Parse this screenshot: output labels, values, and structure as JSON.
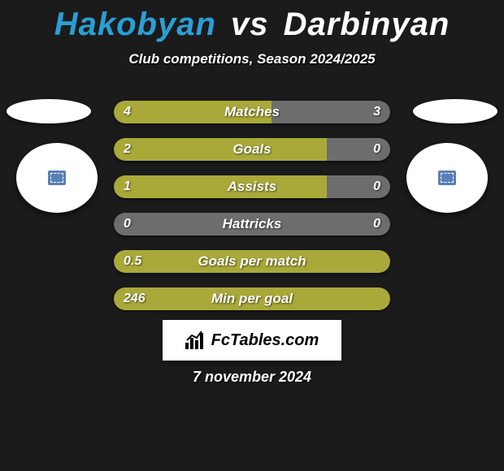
{
  "title": {
    "player1": "Hakobyan",
    "vs": "vs",
    "player2": "Darbinyan"
  },
  "subtitle": "Club competitions, Season 2024/2025",
  "colors": {
    "player1_bar": "#a9a93a",
    "player2_bar": "#6d6d6d",
    "title_p1": "#2a9fd6",
    "background": "#1b1b1b"
  },
  "bars": [
    {
      "label": "Matches",
      "left": "4",
      "right": "3",
      "left_pct": 57,
      "mode": "split"
    },
    {
      "label": "Goals",
      "left": "2",
      "right": "0",
      "left_pct": 77,
      "mode": "split"
    },
    {
      "label": "Assists",
      "left": "1",
      "right": "0",
      "left_pct": 77,
      "mode": "split"
    },
    {
      "label": "Hattricks",
      "left": "0",
      "right": "0",
      "left_pct": 0,
      "mode": "neutral"
    },
    {
      "label": "Goals per match",
      "left": "0.5",
      "right": "",
      "left_pct": 100,
      "mode": "full-left"
    },
    {
      "label": "Min per goal",
      "left": "246",
      "right": "",
      "left_pct": 100,
      "mode": "full-left"
    }
  ],
  "watermark": "FcTables.com",
  "date": "7 november 2024"
}
